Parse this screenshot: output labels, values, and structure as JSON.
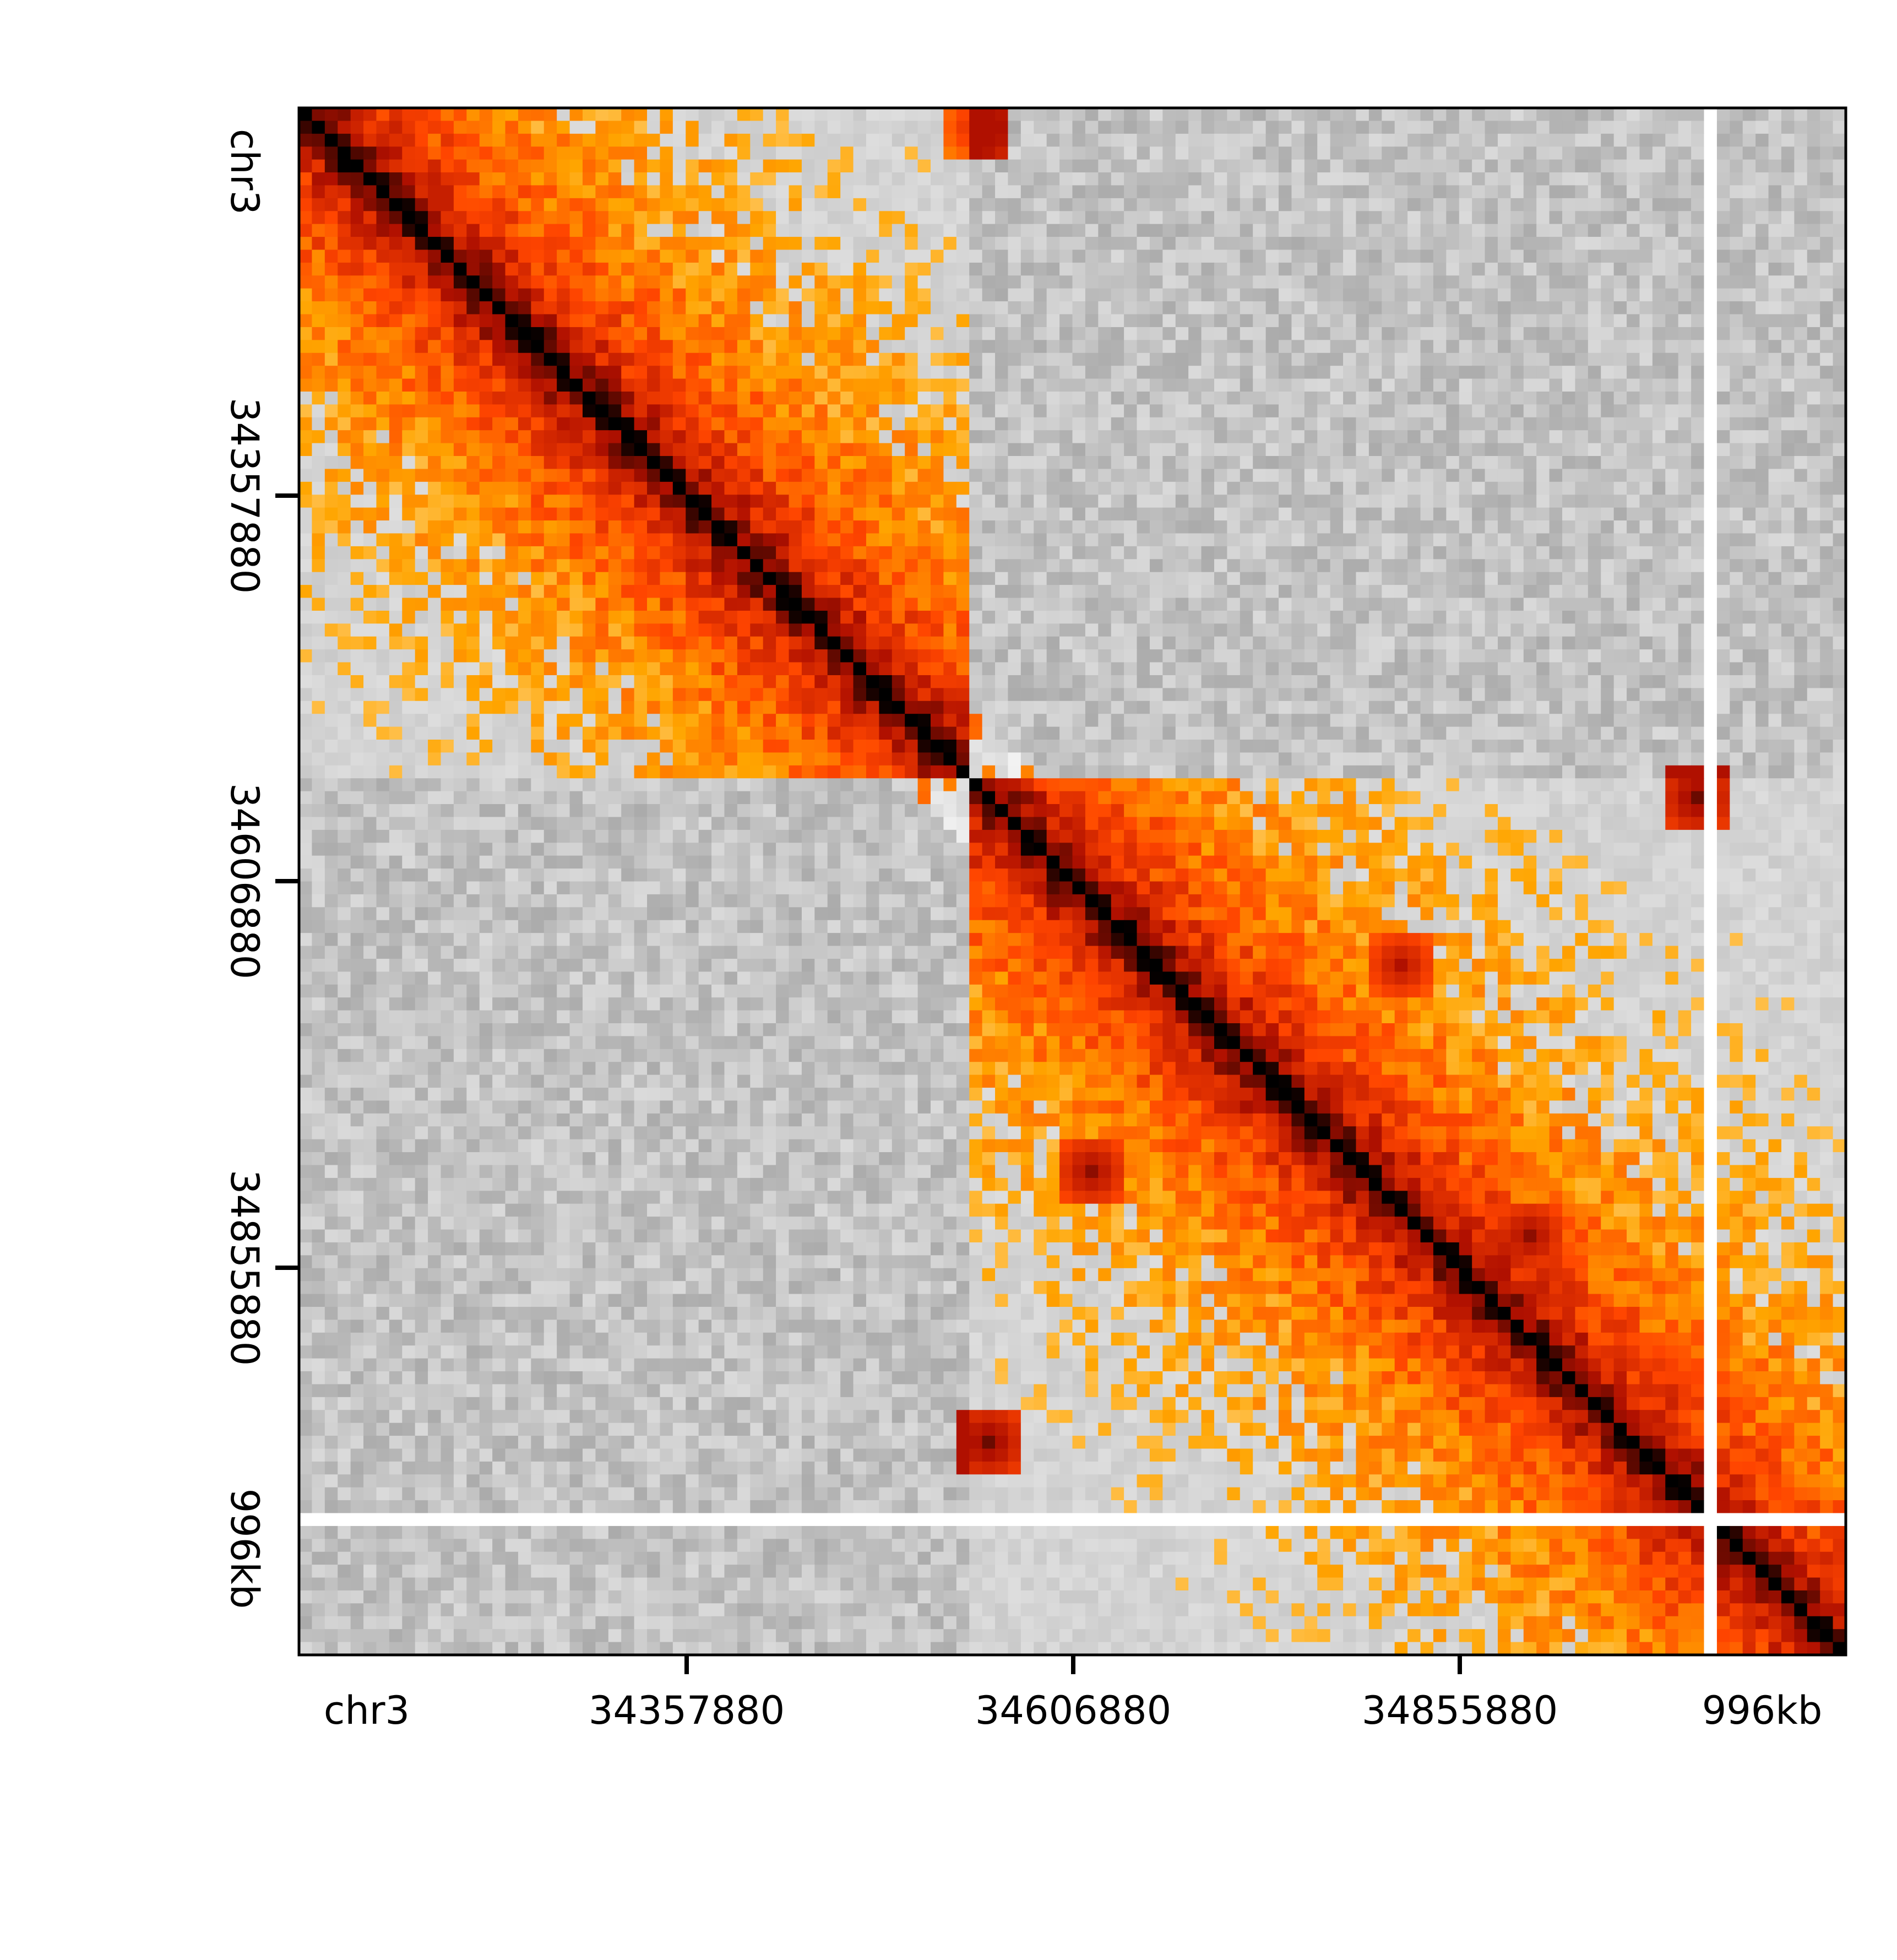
{
  "chart_data": {
    "type": "heatmap",
    "title": "",
    "xlabel": "",
    "ylabel": "",
    "chromosome": "chr3",
    "xlim_bp": [
      34107880,
      35103880
    ],
    "ylim_bp": [
      34107880,
      35103880
    ],
    "x_ticks": [
      {
        "label": "chr3",
        "value": 34107880,
        "tick_mark": false
      },
      {
        "label": "34357880",
        "value": 34357880,
        "tick_mark": true
      },
      {
        "label": "34606880",
        "value": 34606880,
        "tick_mark": true
      },
      {
        "label": "34855880",
        "value": 34855880,
        "tick_mark": true
      },
      {
        "label": "996kb",
        "value": 35103880,
        "tick_mark": false
      }
    ],
    "y_ticks": [
      {
        "label": "chr3",
        "value": 34107880,
        "tick_mark": false
      },
      {
        "label": "34357880",
        "value": 34357880,
        "tick_mark": true
      },
      {
        "label": "34606880",
        "value": 34606880,
        "tick_mark": true
      },
      {
        "label": "34855880",
        "value": 34855880,
        "tick_mark": true
      },
      {
        "label": "996kb",
        "value": 35103880,
        "tick_mark": false
      }
    ],
    "bins": 120,
    "colormap_in_domain": [
      "#ffffff",
      "#ffa500",
      "#ff4500",
      "#b01000",
      "#000000"
    ],
    "colormap_out_domain": [
      "#f2f2f2",
      "#6a6a6a"
    ],
    "domains": [
      {
        "start_bp": 34107880,
        "end_bp": 34540000
      },
      {
        "start_bp": 34540000,
        "end_bp": 35103880
      }
    ],
    "masked_bins_bp": [
      35020000
    ],
    "hotspots": [
      {
        "x_bp": 34540000,
        "y_bp": 34120000,
        "strength": 0.35
      },
      {
        "x_bp": 35005000,
        "y_bp": 34550000,
        "strength": 0.55
      },
      {
        "x_bp": 34620000,
        "y_bp": 34790000,
        "strength": 0.5
      },
      {
        "x_bp": 34815000,
        "y_bp": 34660000,
        "strength": 0.45
      },
      {
        "x_bp": 34900000,
        "y_bp": 34830000,
        "strength": 0.5
      },
      {
        "x_bp": 34550000,
        "y_bp": 34970000,
        "strength": 0.55
      }
    ]
  }
}
